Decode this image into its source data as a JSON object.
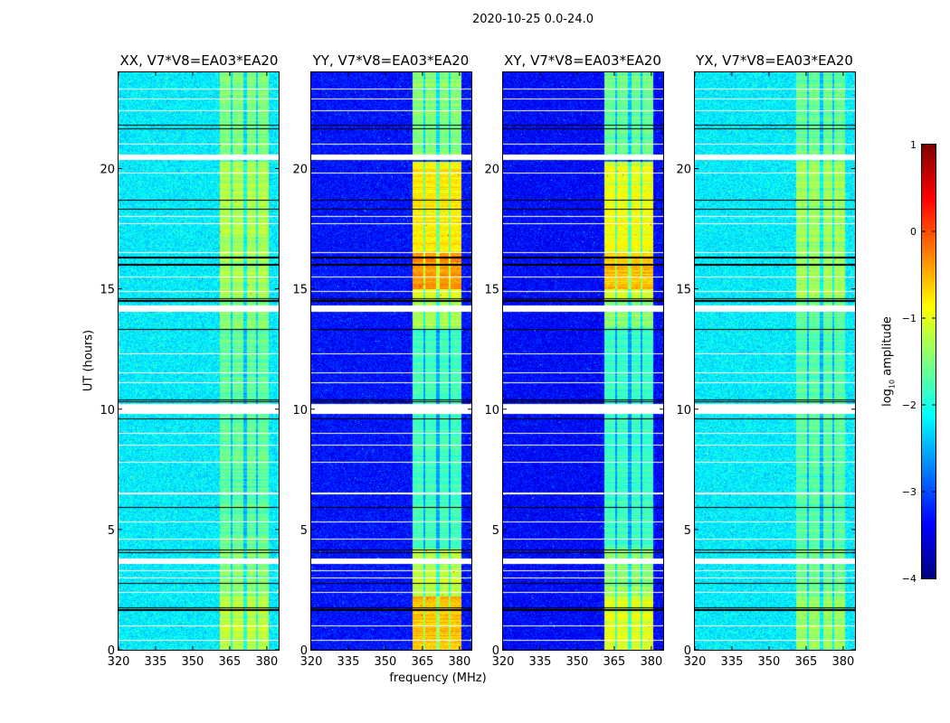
{
  "chart_data": {
    "type": "heatmap",
    "title": "2020-10-25 0.0-24.0",
    "xlabel": "frequency (MHz)",
    "ylabel": "UT (hours)",
    "xlim": [
      320,
      384.8
    ],
    "ylim": [
      0,
      24
    ],
    "xticks": [
      320,
      335,
      350,
      365,
      380
    ],
    "yticks": [
      0,
      5,
      10,
      15,
      20
    ],
    "colorbar": {
      "label_main": "log",
      "label_sub": "10",
      "label_rest": " amplitude",
      "range": [
        -4,
        1
      ],
      "ticks": [
        1,
        0,
        -1,
        -2,
        -3,
        -4
      ],
      "tick_labels": [
        "1",
        "0",
        "−1",
        "−2",
        "−3",
        "−4"
      ],
      "colormap": "jet"
    },
    "band_mhz": [
      361,
      380.5
    ],
    "band_notches_mhz": [
      365.6,
      371.2,
      376.0
    ],
    "flagged_intervals_hours": [
      [
        20.35,
        20.6
      ],
      [
        14.05,
        14.3
      ],
      [
        9.8,
        10.2
      ],
      [
        3.55,
        3.8
      ]
    ],
    "flagged_lines_hours": [
      23.3,
      22.9,
      22.4,
      21.0,
      19.8,
      18.0,
      17.7,
      16.5,
      15.5,
      14.9,
      12.3,
      11.5,
      11.1,
      9.0,
      8.5,
      7.8,
      6.5,
      5.3,
      4.6,
      3.3,
      3.0,
      2.4,
      1.0,
      0.4
    ],
    "dropped_lines_hours": [
      21.8,
      21.65,
      18.7,
      18.3,
      16.3,
      16.0,
      14.6,
      14.5,
      13.3,
      10.4,
      10.3,
      9.6,
      5.9,
      4.15,
      4.05,
      2.75,
      1.75,
      1.65
    ],
    "panels": [
      {
        "title": "XX, V7*V8=EA03*EA20",
        "background_level": -2.2,
        "band_levels": [
          [
            0,
            2.2,
            -1.2
          ],
          [
            2.2,
            4.2,
            -1.45
          ],
          [
            4.2,
            13.3,
            -1.65
          ],
          [
            13.3,
            14.5,
            -1.5
          ],
          [
            14.5,
            20.3,
            -1.25
          ],
          [
            20.6,
            24,
            -1.5
          ]
        ]
      },
      {
        "title": "YY, V7*V8=EA03*EA20",
        "background_level": -3.3,
        "band_levels": [
          [
            0,
            2.2,
            -0.6
          ],
          [
            2.2,
            4.2,
            -1.2
          ],
          [
            4.2,
            13.3,
            -1.8
          ],
          [
            13.3,
            14.5,
            -1.3
          ],
          [
            14.5,
            15,
            -1.0
          ],
          [
            15,
            16.5,
            -0.35
          ],
          [
            16.5,
            20.3,
            -0.8
          ],
          [
            20.6,
            24,
            -1.5
          ]
        ]
      },
      {
        "title": "XY, V7*V8=EA03*EA20",
        "background_level": -3.35,
        "band_levels": [
          [
            0,
            2.2,
            -1.0
          ],
          [
            2.2,
            4.2,
            -1.4
          ],
          [
            4.2,
            13.3,
            -1.85
          ],
          [
            13.3,
            14.5,
            -1.5
          ],
          [
            14.5,
            15,
            -1.1
          ],
          [
            15,
            16.5,
            -0.6
          ],
          [
            16.5,
            20.3,
            -0.95
          ],
          [
            20.6,
            24,
            -1.6
          ]
        ]
      },
      {
        "title": "YX, V7*V8=EA03*EA20",
        "background_level": -2.2,
        "band_levels": [
          [
            0,
            2.2,
            -1.35
          ],
          [
            2.2,
            4.2,
            -1.55
          ],
          [
            4.2,
            13.3,
            -1.7
          ],
          [
            13.3,
            14.5,
            -1.6
          ],
          [
            14.5,
            20.3,
            -1.35
          ],
          [
            20.6,
            24,
            -1.6
          ]
        ]
      }
    ]
  }
}
